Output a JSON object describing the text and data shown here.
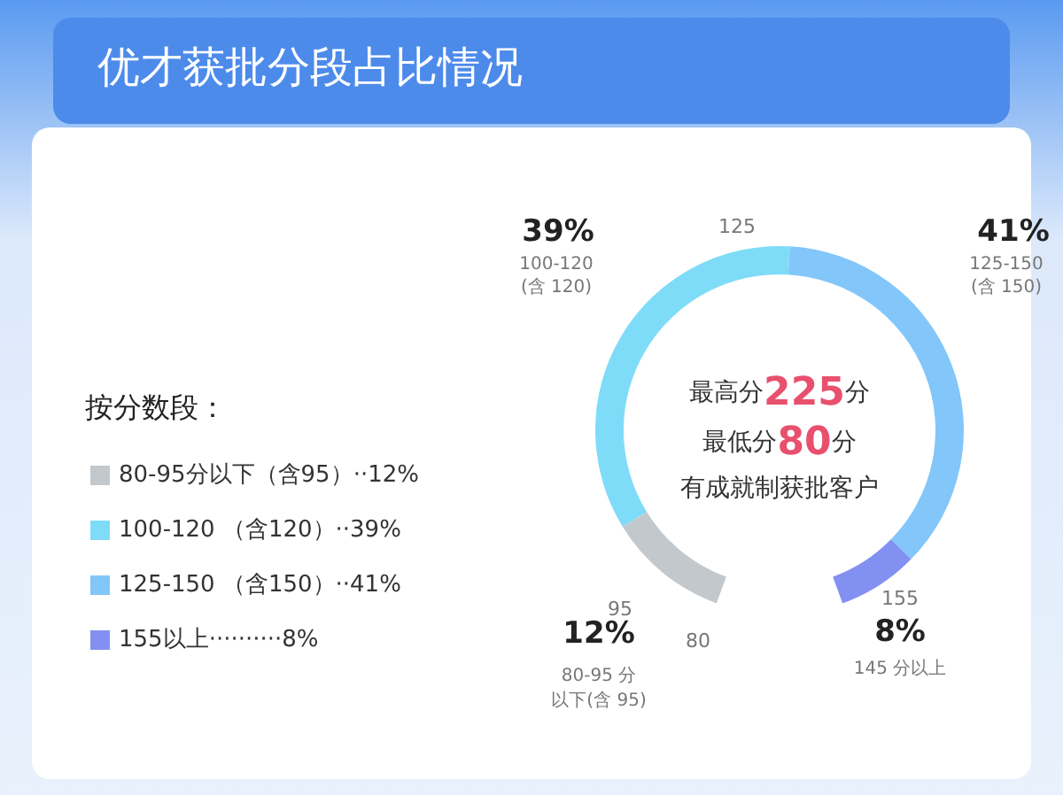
{
  "chart_data": {
    "type": "donut",
    "title": "优才获批分段占比情况",
    "legend_title": "按分数段：",
    "categories": [
      "80-95分以下（含95）··",
      "100-120 （含120）··",
      "125-150 （含150）··",
      "155以上··········"
    ],
    "values": [
      12,
      39,
      41,
      8
    ],
    "value_labels": [
      "12%",
      "39%",
      "41%",
      "8%"
    ],
    "colors": [
      "#c3c8cc",
      "#7fdcf8",
      "#82c6fa",
      "#8290f2"
    ],
    "legend": "left",
    "annotations": [
      "125",
      "155",
      "95",
      "80",
      "100-120\n(含 120)",
      "125-150\n(含 150)",
      "80-95 分",
      "以下(含 95)",
      "145 分以上",
      "最高分225分",
      "最低分80分",
      "有成就制获批客户"
    ]
  }
}
